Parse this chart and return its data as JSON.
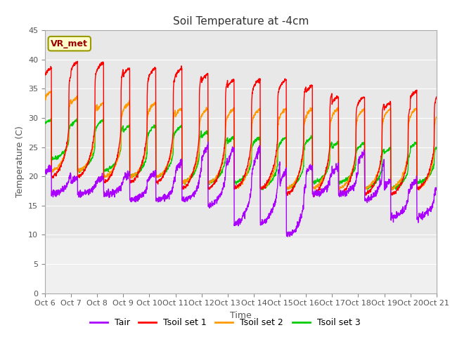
{
  "title": "Soil Temperature at -4cm",
  "xlabel": "Time",
  "ylabel": "Temperature (C)",
  "ylim": [
    0,
    45
  ],
  "yticks": [
    0,
    5,
    10,
    15,
    20,
    25,
    30,
    35,
    40,
    45
  ],
  "colors": {
    "Tair": "#aa00ff",
    "Tsoil_set1": "#ff0000",
    "Tsoil_set2": "#ff9900",
    "Tsoil_set3": "#00cc00"
  },
  "legend_labels": [
    "Tair",
    "Tsoil set 1",
    "Tsoil set 2",
    "Tsoil set 3"
  ],
  "annotation_text": "VR_met",
  "plot_bg": "#e8e8e8",
  "lower_bg": "#f0f0f0",
  "fig_bg": "#ffffff",
  "n_days": 15,
  "points_per_day": 144,
  "start_day": 6,
  "title_fontsize": 11,
  "axis_fontsize": 9,
  "tick_fontsize": 8,
  "legend_fontsize": 9
}
